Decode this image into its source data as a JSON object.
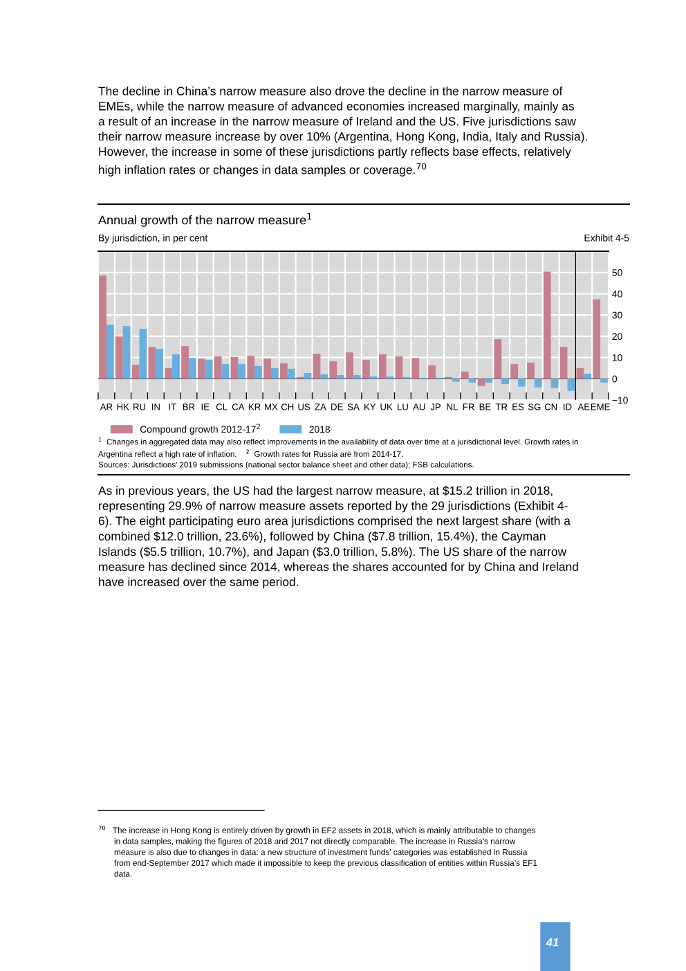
{
  "chart_data": {
    "type": "bar",
    "title": "Annual growth of the narrow measure$^{1}$",
    "subtitle": "By jurisdiction, in per cent",
    "categories": [
      "AR",
      "HK",
      "RU",
      "IN",
      "IT",
      "BR",
      "IE",
      "CL",
      "CA",
      "KR",
      "MX",
      "CH",
      "US",
      "ZA",
      "DE",
      "SA",
      "KY",
      "UK",
      "LU",
      "AU",
      "JP",
      "NL",
      "FR",
      "BE",
      "TR",
      "ES",
      "SG",
      "CN",
      "ID",
      "AE",
      "EME"
    ],
    "series": [
      {
        "name": "Compound growth 2012-17$^{2}$",
        "color": "#c4808f",
        "values": [
          48.6,
          19.9,
          6.6,
          15.0,
          5.0,
          15.4,
          9.5,
          10.5,
          10.2,
          10.8,
          9.5,
          7.3,
          0.8,
          11.8,
          8.2,
          12.4,
          8.9,
          11.5,
          10.5,
          9.8,
          6.3,
          0.8,
          3.4,
          -3.4,
          18.6,
          6.9,
          7.6,
          50.4,
          15.0,
          5.0,
          37.4
        ]
      },
      {
        "name": "2018",
        "color": "#6aaee0",
        "values": [
          25.4,
          24.8,
          23.5,
          14.1,
          11.5,
          9.8,
          8.9,
          6.9,
          6.9,
          6.0,
          5.0,
          4.7,
          2.7,
          2.1,
          1.7,
          1.7,
          1.1,
          1.1,
          0.8,
          0.4,
          0.4,
          -1.4,
          -1.8,
          -1.8,
          -2.5,
          -3.7,
          -4.1,
          -4.4,
          -5.7,
          2.4,
          -1.8
        ]
      }
    ],
    "ylim": [
      -10,
      60
    ],
    "yticks": [
      -10,
      0,
      10,
      20,
      30,
      40,
      50
    ],
    "grid": true,
    "legend": "bottom left",
    "ref_lines": [
      {
        "axis": "x",
        "value": "AE",
        "color": "#000000"
      }
    ],
    "annotations": [
      "The decline in China’s narrow measure also drove the decline in the narrow measure of\nEMEs, while the narrow measure of advanced economies increased marginally, mainly as\na result of an increase in the narrow measure of Ireland and the US. Five jurisdictions saw\ntheir narrow measure increase by over 10% (Argentina, Hong Kong, India, Italy and Russia).\nHowever, the increase in some of these jurisdictions partly reflects base effects, relatively\nhigh inflation rates or changes in data samples or coverage.$^{70}$",
      "Exhibit 4-5",
      "$^{1}$  Changes in aggregated data may also reflect improvements in the availability of data over time at a jurisdictional level. Growth rates in\nArgentina reflect a high rate of inflation.    $^{2}$  Growth rates for Russia are from 2014-17.",
      "Sources: Jurisdictions’ 2019 submissions (national sector balance sheet and other data); FSB calculations.",
      "As in previous years, the US had the largest narrow measure, at $15.2 trillion in 2018,\nrepresenting 29.9% of narrow measure assets reported by the 29 jurisdictions (Exhibit 4-\n6). The eight participating euro area jurisdictions comprised the next largest share (with a\ncombined $12.0 trillion, 23.6%), followed by China ($7.8 trillion, 15.4%), the Cayman\nIslands ($5.5 trillion, 10.7%), and Japan ($3.0 trillion, 5.8%). The US share of the narrow\nmeasure has declined since 2014, whereas the shares accounted for by China and Ireland\nhave increased over the same period.",
      "$^{70}$   The increase in Hong Kong is entirely driven by growth in EF2 assets in 2018, which is mainly attributable to changes\n       in data samples, making the figures of 2018 and 2017 not directly comparable. The increase in Russia’s narrow\n       measure is also due to changes in data: a new structure of investment funds’ categories was established in Russia\n       from end-September 2017 which made it impossible to keep the previous classification of entities within Russia’s EF1\n       data.",
      "41"
    ]
  }
}
